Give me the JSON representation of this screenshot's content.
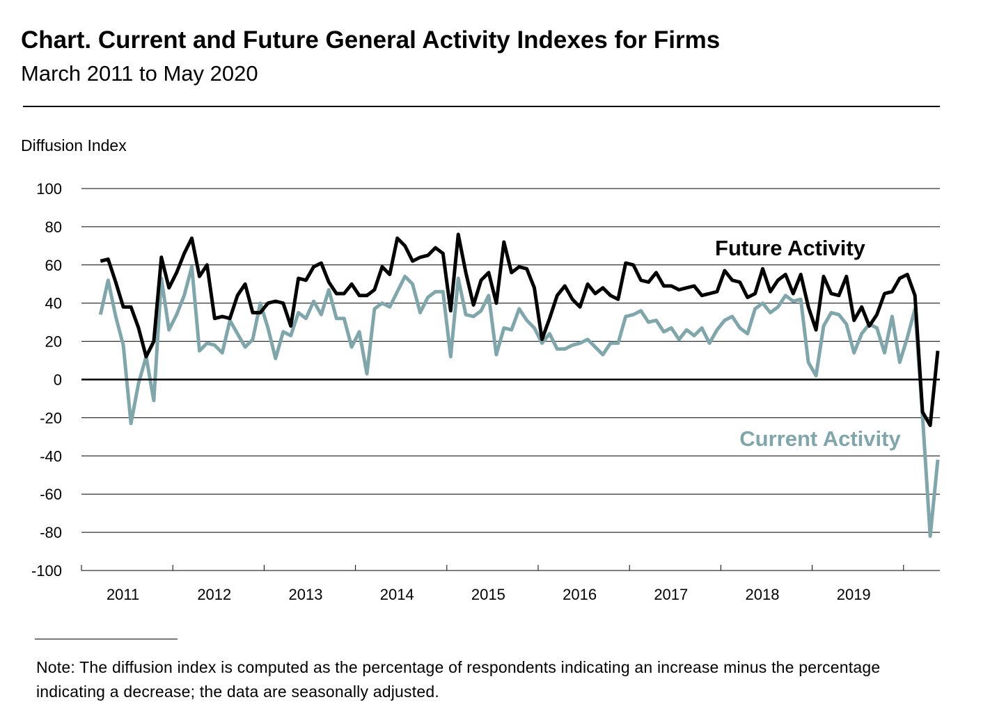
{
  "chart_data": {
    "type": "line",
    "title": "Chart. Current and Future General Activity Indexes for Firms",
    "subtitle": "March 2011 to May 2020",
    "ylabel": "Diffusion Index",
    "xlabel": "",
    "ylim": [
      -100,
      100
    ],
    "yticks": [
      100,
      80,
      60,
      40,
      20,
      0,
      -20,
      -40,
      -60,
      -80,
      -100
    ],
    "xtick_labels": [
      "2011",
      "2012",
      "2013",
      "2014",
      "2015",
      "2016",
      "2017",
      "2018",
      "2019"
    ],
    "start_month": "2011-03",
    "end_month": "2020-05",
    "grid": "horizontal",
    "series": [
      {
        "name": "Future Activity",
        "color": "#000000",
        "values": [
          62,
          63,
          51,
          38,
          38,
          27,
          12,
          20,
          64,
          48,
          56,
          66,
          74,
          54,
          60,
          32,
          33,
          32,
          44,
          50,
          35,
          35,
          40,
          41,
          40,
          28,
          53,
          52,
          59,
          61,
          51,
          45,
          45,
          50,
          44,
          44,
          47,
          59,
          55,
          74,
          70,
          62,
          64,
          65,
          69,
          66,
          36,
          76,
          56,
          39,
          52,
          56,
          40,
          72,
          56,
          59,
          58,
          48,
          21,
          32,
          44,
          49,
          42,
          38,
          50,
          45,
          48,
          44,
          42,
          61,
          60,
          52,
          51,
          56,
          49,
          49,
          47,
          48,
          49,
          44,
          45,
          46,
          57,
          52,
          51,
          43,
          45,
          58,
          46,
          52,
          55,
          45,
          55,
          38,
          26,
          54,
          45,
          44,
          54,
          31,
          38,
          28,
          34,
          45,
          46,
          53,
          55,
          44,
          -17,
          -24,
          15
        ]
      },
      {
        "name": "Current Activity",
        "color": "#7fa7ab",
        "values": [
          34,
          52,
          33,
          18,
          -23,
          -2,
          12,
          -11,
          53,
          26,
          34,
          44,
          59,
          15,
          19,
          18,
          14,
          31,
          24,
          17,
          21,
          40,
          27,
          11,
          25,
          23,
          35,
          32,
          41,
          34,
          47,
          32,
          32,
          17,
          25,
          3,
          37,
          40,
          38,
          46,
          54,
          50,
          35,
          43,
          46,
          46,
          12,
          53,
          34,
          33,
          36,
          44,
          13,
          27,
          26,
          37,
          31,
          27,
          19,
          24,
          16,
          16,
          18,
          19,
          21,
          17,
          13,
          19,
          19,
          33,
          34,
          36,
          30,
          31,
          25,
          27,
          21,
          26,
          23,
          27,
          19,
          26,
          31,
          33,
          27,
          24,
          37,
          40,
          35,
          38,
          44,
          41,
          42,
          9,
          2,
          28,
          35,
          34,
          29,
          14,
          24,
          29,
          27,
          14,
          33,
          9,
          22,
          37,
          -19,
          -82,
          -42
        ]
      }
    ],
    "legend": "inline-labels",
    "note": "Note:  The diffusion index is computed as the percentage of respondents indicating an increase minus the percentage indicating a decrease; the data are seasonally adjusted."
  }
}
